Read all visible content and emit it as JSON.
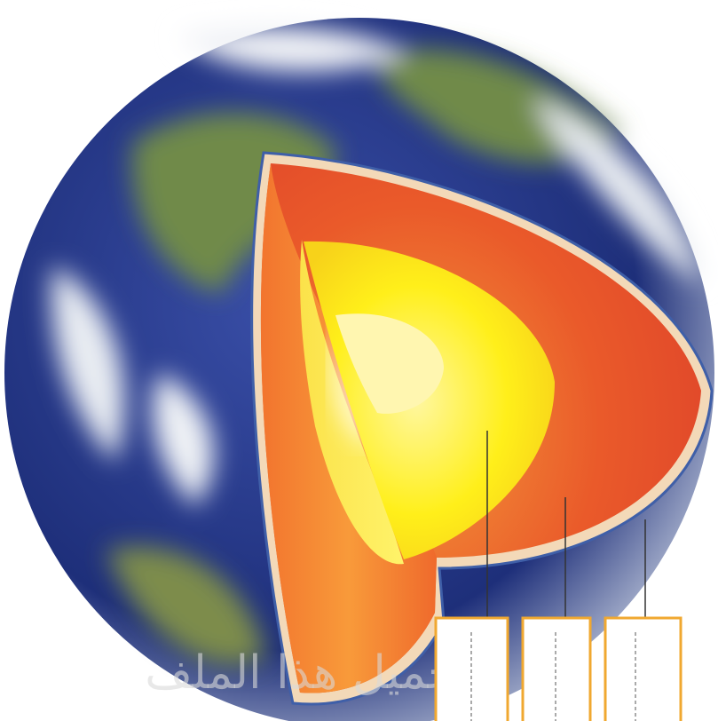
{
  "watermark": "تحميل هذا الملف"
}
